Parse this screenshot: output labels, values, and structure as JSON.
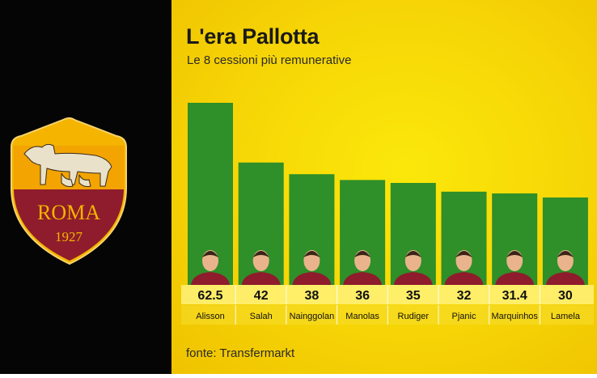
{
  "logo": {
    "name": "ROMA",
    "year": "1927"
  },
  "chart_data": {
    "type": "bar",
    "title": "L'era Pallotta",
    "subtitle": "Le 8 cessioni più remunerative",
    "categories": [
      "Alisson",
      "Salah",
      "Nainggolan",
      "Manolas",
      "Rudiger",
      "Pjanic",
      "Marquinhos",
      "Lamela"
    ],
    "values": [
      62.5,
      42,
      38,
      36,
      35,
      32,
      31.4,
      30
    ],
    "value_labels": [
      "62.5",
      "42",
      "38",
      "36",
      "35",
      "32",
      "31.4",
      "30"
    ],
    "source": "fonte: Transfermarkt",
    "colors": {
      "bar": "#2f8f28",
      "background": "#f6d506"
    }
  }
}
